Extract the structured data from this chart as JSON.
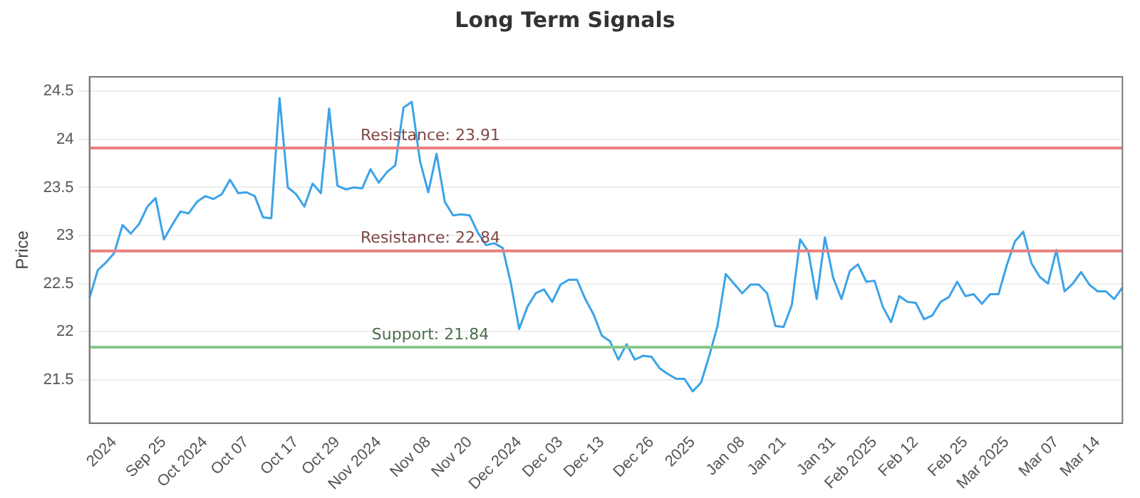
{
  "chart_data": {
    "type": "line",
    "title": "Long Term Signals",
    "ylabel": "Price",
    "categories": [
      null,
      null,
      null,
      "2024",
      null,
      null,
      null,
      null,
      null,
      "Sep 25",
      null,
      null,
      null,
      null,
      "Oct 2024",
      null,
      null,
      null,
      null,
      "Oct 07",
      null,
      null,
      null,
      null,
      null,
      "Oct 17",
      null,
      null,
      null,
      null,
      "Oct 29",
      null,
      null,
      null,
      null,
      "Nov 2024",
      null,
      null,
      null,
      null,
      null,
      "Nov 08",
      null,
      null,
      null,
      null,
      "Nov 20",
      null,
      null,
      null,
      null,
      null,
      "Dec 2024",
      null,
      null,
      null,
      null,
      "Dec 03",
      null,
      null,
      null,
      null,
      "Dec 13",
      null,
      null,
      null,
      null,
      null,
      "Dec 26",
      null,
      null,
      null,
      null,
      "2025",
      null,
      null,
      null,
      null,
      null,
      "Jan 08",
      null,
      null,
      null,
      null,
      "Jan 21",
      null,
      null,
      null,
      null,
      null,
      "Jan 31",
      null,
      null,
      null,
      null,
      "Feb 2025",
      null,
      null,
      null,
      null,
      "Feb 12",
      null,
      null,
      null,
      null,
      null,
      "Feb 25",
      null,
      null,
      null,
      null,
      "Mar 2025",
      null,
      null,
      null,
      null,
      null,
      "Mar 07",
      null,
      null,
      null,
      null,
      "Mar 14",
      null,
      null,
      null
    ],
    "series": [
      {
        "color": "#3ba3e8",
        "values": [
          22.35,
          22.64,
          22.72,
          22.82,
          23.11,
          23.02,
          23.12,
          23.3,
          23.39,
          22.96,
          23.11,
          23.25,
          23.23,
          23.35,
          23.41,
          23.38,
          23.43,
          23.58,
          23.44,
          23.45,
          23.41,
          23.19,
          23.18,
          24.43,
          23.5,
          23.43,
          23.3,
          23.54,
          23.44,
          24.32,
          23.52,
          23.48,
          23.5,
          23.49,
          23.69,
          23.55,
          23.66,
          23.73,
          24.33,
          24.39,
          23.77,
          23.45,
          23.85,
          23.35,
          23.21,
          23.22,
          23.21,
          23.03,
          22.9,
          22.92,
          22.87,
          22.5,
          22.03,
          22.26,
          22.4,
          22.44,
          22.31,
          22.49,
          22.54,
          22.54,
          22.34,
          22.18,
          21.96,
          21.9,
          21.71,
          21.87,
          21.71,
          21.75,
          21.74,
          21.62,
          21.56,
          21.51,
          21.51,
          21.38,
          21.47,
          21.75,
          22.06,
          22.6,
          22.5,
          22.4,
          22.49,
          22.49,
          22.4,
          22.06,
          22.05,
          22.28,
          22.96,
          22.83,
          22.34,
          22.98,
          22.56,
          22.34,
          22.63,
          22.7,
          22.52,
          22.53,
          22.26,
          22.1,
          22.37,
          22.31,
          22.3,
          22.13,
          22.17,
          22.31,
          22.36,
          22.52,
          22.37,
          22.39,
          22.29,
          22.39,
          22.39,
          22.69,
          22.94,
          23.04,
          22.71,
          22.57,
          22.5,
          22.85,
          22.42,
          22.5,
          22.62,
          22.49,
          22.42,
          22.42,
          22.34,
          22.46
        ]
      }
    ],
    "ylim": [
      21.05,
      24.65
    ],
    "yticks": [
      21.5,
      22,
      22.5,
      23,
      23.5,
      24,
      24.5
    ],
    "grid": "y",
    "marker": "none",
    "line_style": "solid",
    "ref_lines": [
      {
        "axis": "y",
        "value": 23.91,
        "label": "Resistance: 23.91",
        "color": "#e88080"
      },
      {
        "axis": "y",
        "value": 22.84,
        "label": "Resistance: 22.84",
        "color": "#e88080"
      },
      {
        "axis": "y",
        "value": 21.84,
        "label": "Support: 21.84",
        "color": "#88c888"
      }
    ]
  }
}
